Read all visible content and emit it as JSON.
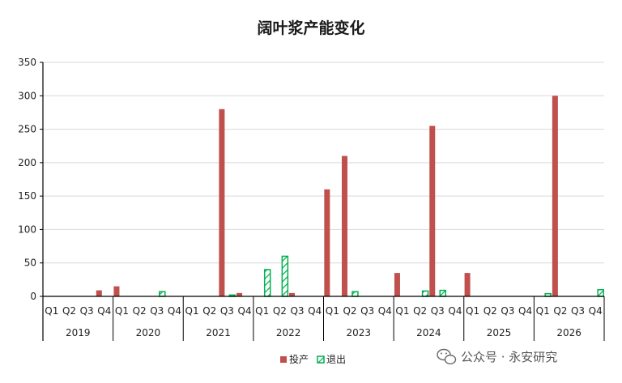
{
  "chart_data": {
    "type": "bar",
    "title": "阔叶浆产能变化",
    "xlabel": "",
    "ylabel": "",
    "ylim": [
      0,
      350
    ],
    "yticks": [
      0,
      50,
      100,
      150,
      200,
      250,
      300,
      350
    ],
    "grid": true,
    "legend_position": "bottom",
    "years": [
      "2019",
      "2020",
      "2021",
      "2022",
      "2023",
      "2024",
      "2025",
      "2026"
    ],
    "quarters": [
      "Q1",
      "Q2",
      "Q3",
      "Q4"
    ],
    "series": [
      {
        "name": "投产",
        "color": "#c0504d",
        "values": [
          0,
          0,
          0,
          9,
          15,
          0,
          0,
          0,
          0,
          0,
          280,
          5,
          0,
          0,
          5,
          0,
          160,
          210,
          0,
          0,
          35,
          0,
          255,
          0,
          35,
          0,
          0,
          0,
          0,
          300,
          0,
          0
        ]
      },
      {
        "name": "退出",
        "color": "#00b050",
        "values": [
          0,
          0,
          0,
          0,
          0,
          0,
          7,
          0,
          0,
          0,
          2,
          0,
          40,
          60,
          0,
          0,
          0,
          7,
          0,
          0,
          0,
          8,
          9,
          0,
          0,
          0,
          0,
          0,
          4,
          0,
          0,
          10
        ]
      }
    ]
  },
  "watermark": {
    "icon": "wechat-icon",
    "text": "公众号 · 永安研究"
  }
}
